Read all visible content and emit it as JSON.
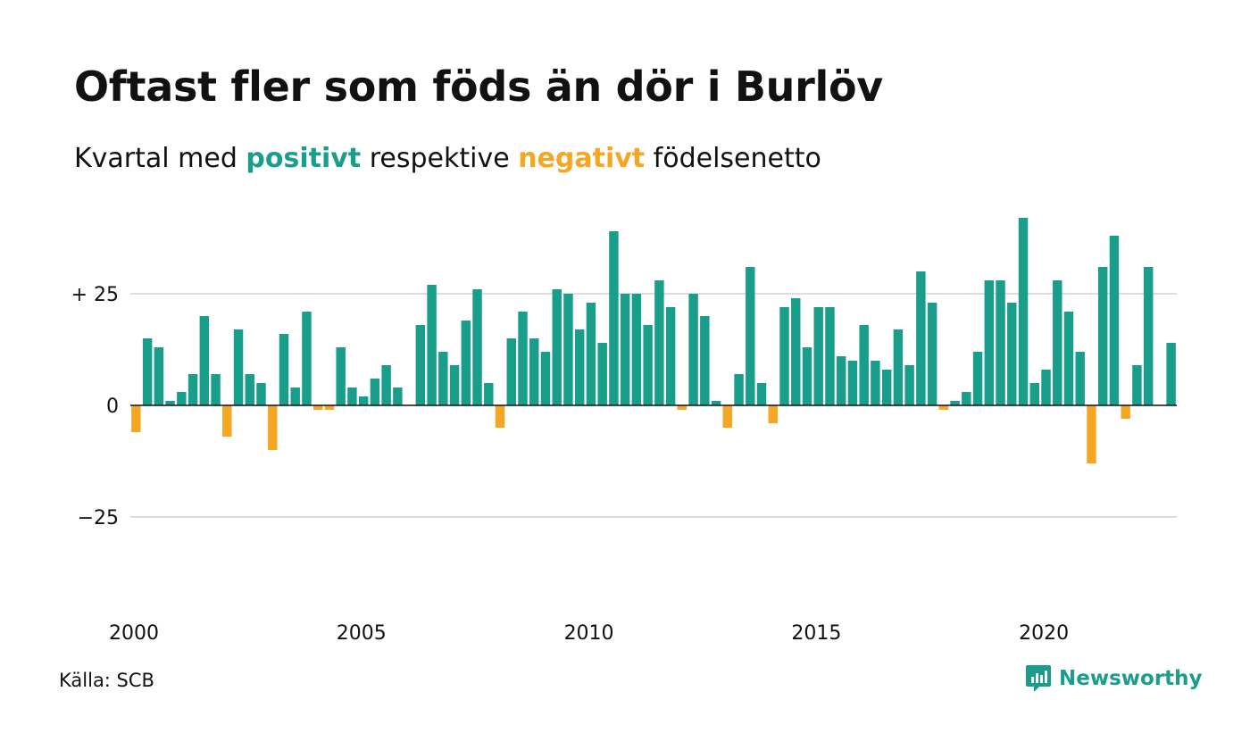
{
  "title": "Oftast fler som föds än dör i Burlöv",
  "subtitle": {
    "before": "Kvartal med ",
    "positive": "positivt",
    "middle": " respektive ",
    "negative": "negativt",
    "after": " födelsenetto"
  },
  "source": "Källa: SCB",
  "brand": "Newsworthy",
  "colors": {
    "positive": "#1a9e8c",
    "negative": "#f5a623",
    "grid": "#dddddd",
    "axis": "#111111"
  },
  "chart_data": {
    "type": "bar",
    "x_start": 2000,
    "x_end": 2023,
    "x_ticks": [
      "2000",
      "2005",
      "2010",
      "2015",
      "2020"
    ],
    "y_ticks": [
      {
        "value": 25,
        "label": "+ 25"
      },
      {
        "value": 0,
        "label": "0"
      },
      {
        "value": -25,
        "label": "−25"
      }
    ],
    "ylim": [
      -45,
      45
    ],
    "grid": true,
    "values": [
      -6,
      15,
      13,
      1,
      3,
      7,
      20,
      7,
      -7,
      17,
      7,
      5,
      -10,
      16,
      4,
      21,
      -1,
      -1,
      13,
      4,
      2,
      6,
      9,
      4,
      0,
      18,
      27,
      12,
      9,
      19,
      26,
      5,
      -5,
      15,
      21,
      15,
      12,
      26,
      25,
      17,
      23,
      14,
      39,
      25,
      25,
      18,
      28,
      22,
      -1,
      25,
      20,
      1,
      -5,
      7,
      31,
      5,
      -4,
      22,
      24,
      13,
      22,
      22,
      11,
      10,
      18,
      10,
      8,
      17,
      9,
      30,
      23,
      -1,
      1,
      3,
      12,
      28,
      28,
      23,
      42,
      5,
      8,
      28,
      21,
      12,
      -13,
      31,
      38,
      -3,
      9,
      31,
      0,
      14
    ]
  }
}
